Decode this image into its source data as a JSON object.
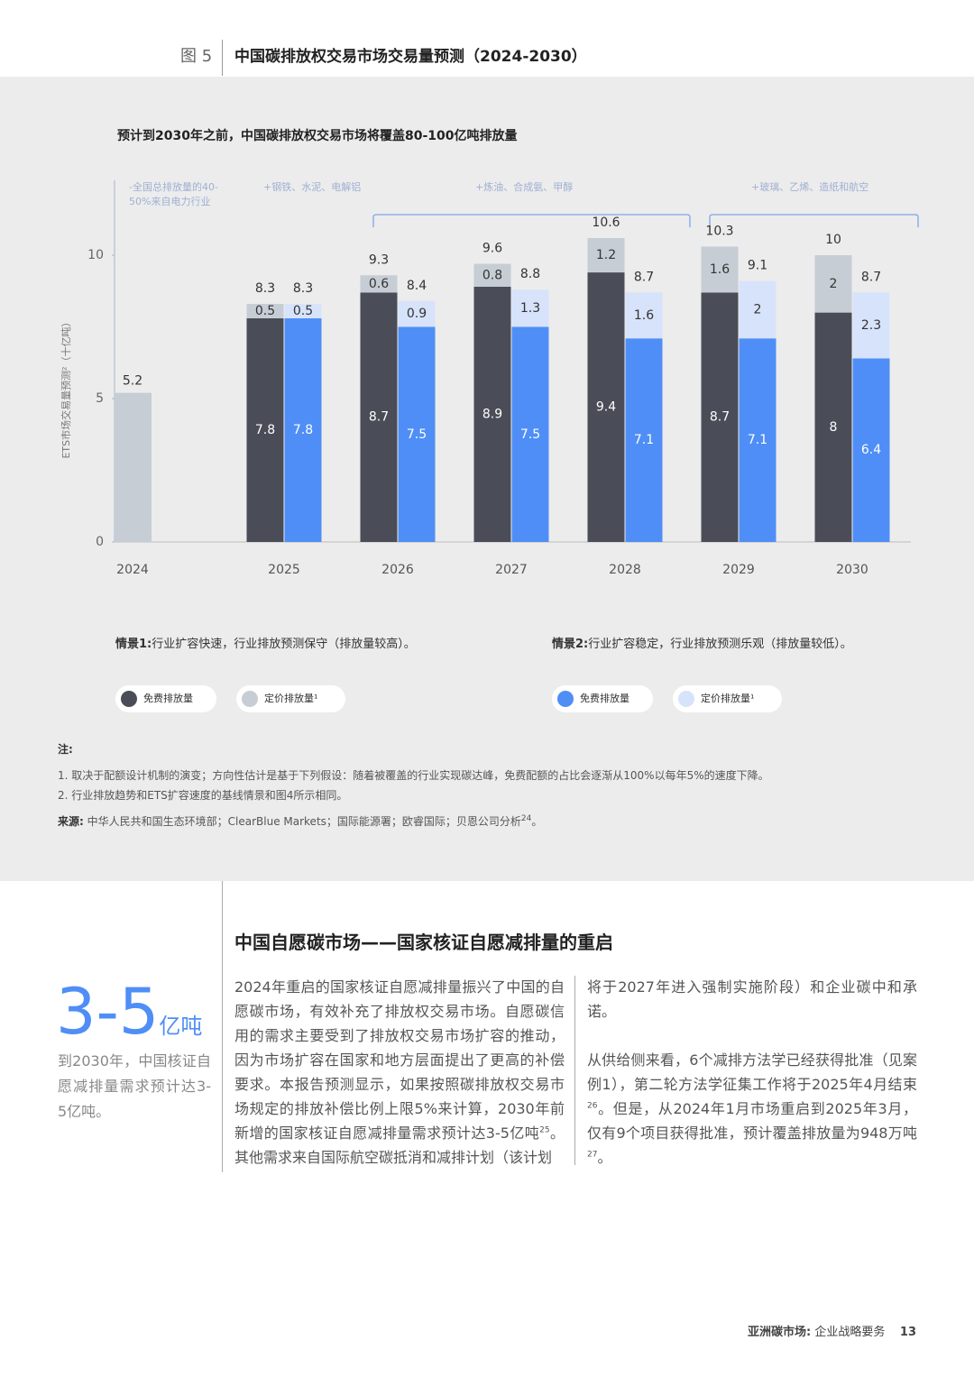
{
  "figure": {
    "label": "图 5",
    "title": "中国碳排放权交易市场交易量预测（2024-2030）"
  },
  "chart_data": {
    "type": "bar",
    "stacked": true,
    "subtitle": "预计到2030年之前，中国碳排放权交易市场将覆盖80-100亿吨排放量",
    "y_label": "ETS市场交易量预测²（十亿吨）",
    "categories": [
      "2024",
      "2025",
      "2026",
      "2027",
      "2028",
      "2029",
      "2030"
    ],
    "ylim": [
      0,
      10.9
    ],
    "yticks": [
      0,
      5,
      10
    ],
    "annotations": [
      {
        "lines": [
          "-全国总排放量的40-",
          "50%来自电力行业"
        ]
      },
      {
        "lines": [
          "+钢铁、水泥、电解铝"
        ]
      },
      {
        "lines": [
          "+炼油、合成氨、甲醇"
        ]
      },
      {
        "lines": [
          "+玻璃、乙烯、造纸和航空"
        ]
      }
    ],
    "scenarios": [
      {
        "label": "情景1:",
        "text": "行业扩容快速，行业排放预测保守（排放量较高）。",
        "totals": [
          null,
          8.3,
          9.3,
          9.6,
          10.6,
          10.3,
          10.0
        ],
        "series": [
          {
            "name": "免费排放量",
            "color": "#4a4d57",
            "values": [
              null,
              7.8,
              8.7,
              8.9,
              9.4,
              8.7,
              8.0
            ]
          },
          {
            "name": "定价排放量¹",
            "color": "#c6cdd4",
            "values": [
              5.2,
              0.5,
              0.6,
              0.8,
              1.2,
              1.6,
              2.0
            ]
          }
        ]
      },
      {
        "label": "情景2:",
        "text": "行业扩容稳定，行业排放预测乐观（排放量较低）。",
        "totals": [
          null,
          8.3,
          8.4,
          8.8,
          8.7,
          9.1,
          8.7
        ],
        "series": [
          {
            "name": "免费排放量",
            "color": "#4f8ef6",
            "values": [
              null,
              7.8,
              7.5,
              7.5,
              7.1,
              7.1,
              6.4
            ]
          },
          {
            "name": "定价排放量¹",
            "color": "#d7e3fb",
            "values": [
              null,
              0.5,
              0.9,
              1.3,
              1.6,
              2.0,
              2.3
            ]
          }
        ]
      }
    ]
  },
  "notes": {
    "heading": "注:",
    "items": [
      "1. 取决于配额设计机制的演变；方向性估计是基于下列假设：随着被覆盖的行业实现碳达峰，免费配额的占比会逐渐从100%以每年5%的速度下降。",
      "2. 行业排放趋势和ETS扩容速度的基线情景和图4所示相同。"
    ],
    "source_label": "来源:",
    "source": "中华人民共和国生态环境部；ClearBlue Markets；国际能源署；欧睿国际；贝恩公司分析",
    "source_sup": "24",
    "source_end": "。"
  },
  "section": {
    "heading": "中国自愿碳市场——国家核证自愿减排量的重启",
    "stat": {
      "value": "3-5",
      "unit": "亿吨",
      "caption": "到2030年，中国核证自愿减排量需求预计达3-5亿吨。"
    },
    "columns": [
      [
        [
          {
            "text": "2024年重启的国家核证自愿减排量振兴了中国的自愿碳市场，有效补充了排放权交易市场。自愿碳信用的需求主要受到了排放权交易市场扩容的推动，因为市场扩容在国家和地方层面提出了更高的补偿要求。本报告预测显示，如果按照碳排放权交易市场规定的排放补偿比例上限5%来计算，2030年前新增的国家核证自愿减排量需求预计达3-5亿吨"
          },
          {
            "sup": "25"
          },
          {
            "text": "。其他需求来自国际航空碳抵消和减排计划（该计划"
          }
        ]
      ],
      [
        [
          {
            "text": "将于2027年进入强制实施阶段）和企业碳中和承诺。"
          }
        ],
        [
          {
            "text": "从供给侧来看，6个减排方法学已经获得批准（见案例1），第二轮方法学征集工作将于2025年4月结束"
          },
          {
            "sup": "26"
          },
          {
            "text": "。但是，从2024年1月市场重启到2025年3月，仅有9个项目获得批准，预计覆盖排放量为948万吨"
          },
          {
            "sup": "27"
          },
          {
            "text": "。"
          }
        ]
      ]
    ]
  },
  "footer": {
    "report": "亚洲碳市场:",
    "subtitle": "企业战略要务",
    "page": "13"
  }
}
